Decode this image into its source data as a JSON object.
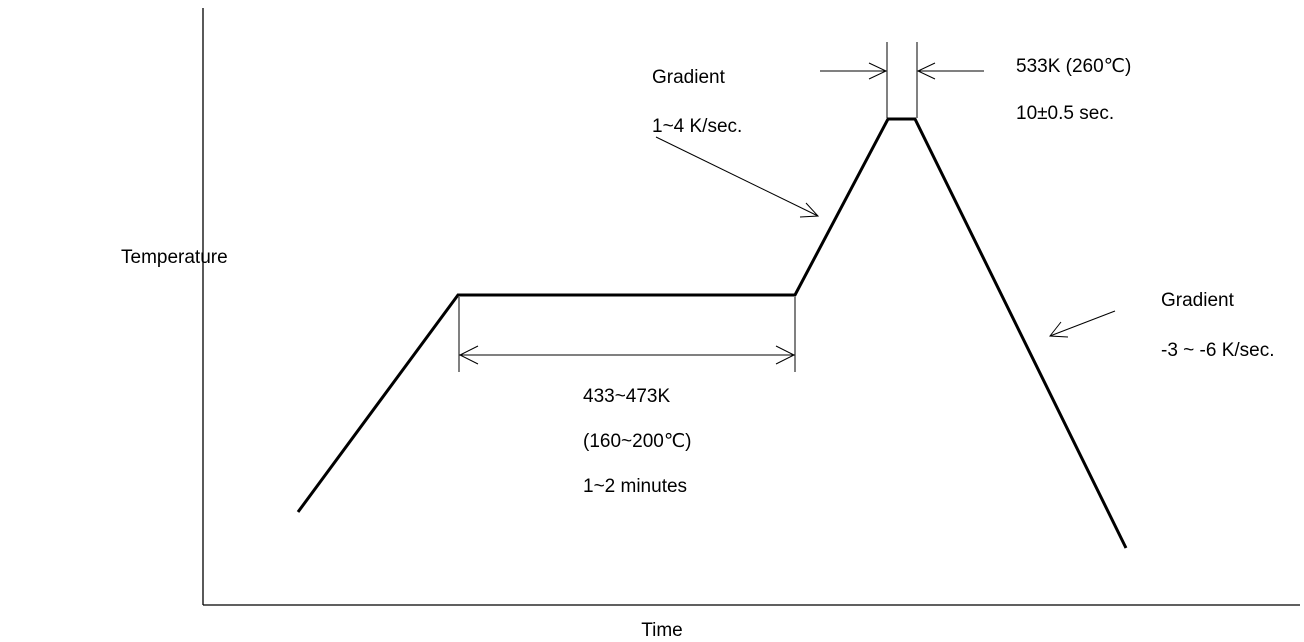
{
  "axes": {
    "y_label": "Temperature",
    "x_label": "Time"
  },
  "annotations": {
    "heating_gradient_title": "Gradient",
    "heating_gradient_value": "1~4 K/sec.",
    "peak_temperature": "533K (260℃)",
    "peak_duration": "10±0.5 sec.",
    "soak_temperature_k": "433~473K",
    "soak_temperature_c": "(160~200℃)",
    "soak_duration": "1~2 minutes",
    "cooling_gradient_title": "Gradient",
    "cooling_gradient_value": "-3 ~ -6 K/sec."
  },
  "colors": {
    "line": "#000000",
    "background": "#ffffff"
  }
}
